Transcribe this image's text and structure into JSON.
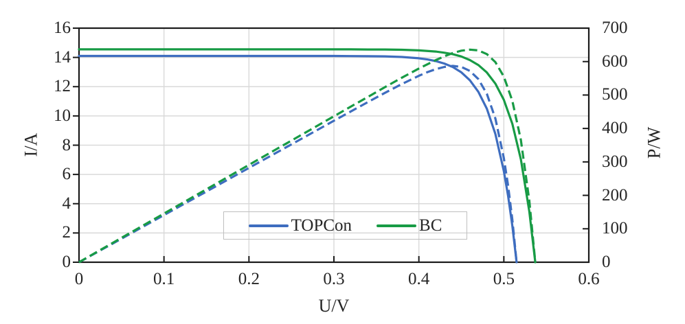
{
  "chart_data": {
    "type": "line",
    "title": "",
    "xlabel": "U/V",
    "ylabel_left": "I/A",
    "ylabel_right": "P/W",
    "x_range": [
      0,
      0.6
    ],
    "y_left_range": [
      0,
      16
    ],
    "y_right_range": [
      0,
      700
    ],
    "x_ticks": [
      "0",
      "0.1",
      "0.2",
      "0.3",
      "0.4",
      "0.5",
      "0.6"
    ],
    "y_left_ticks": [
      "0",
      "2",
      "4",
      "6",
      "8",
      "10",
      "12",
      "14",
      "16"
    ],
    "y_right_ticks": [
      "0",
      "100",
      "200",
      "300",
      "400",
      "500",
      "600",
      "700"
    ],
    "grid": true,
    "colors": {
      "topcon": "#3E6DBF",
      "bc": "#189B45",
      "gridline": "#D9D9D9",
      "axis": "#1A1A1A",
      "text": "#262626",
      "legend_border": "#BFBFBF"
    },
    "legend": {
      "position": "inside-bottom-center",
      "items": [
        {
          "label": "TOPCon",
          "color": "#3E6DBF",
          "style": "solid"
        },
        {
          "label": "BC",
          "color": "#189B45",
          "style": "solid"
        }
      ]
    },
    "series": [
      {
        "id": "topcon-iv",
        "name": "TOPCon current-voltage",
        "axis": "left",
        "style": "solid",
        "color": "#3E6DBF",
        "points": [
          [
            0,
            14.1
          ],
          [
            0.05,
            14.1
          ],
          [
            0.1,
            14.1
          ],
          [
            0.15,
            14.1
          ],
          [
            0.2,
            14.1
          ],
          [
            0.25,
            14.1
          ],
          [
            0.3,
            14.1
          ],
          [
            0.32,
            14.09
          ],
          [
            0.34,
            14.08
          ],
          [
            0.36,
            14.07
          ],
          [
            0.38,
            14.03
          ],
          [
            0.4,
            13.94
          ],
          [
            0.41,
            13.86
          ],
          [
            0.42,
            13.75
          ],
          [
            0.43,
            13.58
          ],
          [
            0.44,
            13.34
          ],
          [
            0.45,
            12.98
          ],
          [
            0.46,
            12.44
          ],
          [
            0.47,
            11.65
          ],
          [
            0.48,
            10.49
          ],
          [
            0.49,
            8.77
          ],
          [
            0.5,
            6.23
          ],
          [
            0.505,
            4.54
          ],
          [
            0.51,
            2.49
          ],
          [
            0.515,
            0
          ]
        ]
      },
      {
        "id": "bc-iv",
        "name": "BC current-voltage",
        "axis": "left",
        "style": "solid",
        "color": "#189B45",
        "points": [
          [
            0,
            14.55
          ],
          [
            0.05,
            14.55
          ],
          [
            0.1,
            14.55
          ],
          [
            0.15,
            14.55
          ],
          [
            0.2,
            14.55
          ],
          [
            0.25,
            14.55
          ],
          [
            0.3,
            14.55
          ],
          [
            0.32,
            14.55
          ],
          [
            0.34,
            14.54
          ],
          [
            0.36,
            14.54
          ],
          [
            0.38,
            14.52
          ],
          [
            0.4,
            14.48
          ],
          [
            0.42,
            14.4
          ],
          [
            0.43,
            14.32
          ],
          [
            0.44,
            14.22
          ],
          [
            0.45,
            14.06
          ],
          [
            0.46,
            13.82
          ],
          [
            0.47,
            13.48
          ],
          [
            0.48,
            12.97
          ],
          [
            0.49,
            12.21
          ],
          [
            0.5,
            11.1
          ],
          [
            0.51,
            9.46
          ],
          [
            0.52,
            7.04
          ],
          [
            0.53,
            3.47
          ],
          [
            0.537,
            0
          ]
        ]
      },
      {
        "id": "topcon-pv",
        "name": "TOPCon power-voltage",
        "axis": "right",
        "style": "dashed",
        "color": "#3E6DBF",
        "points": [
          [
            0,
            0
          ],
          [
            0.05,
            70.5
          ],
          [
            0.1,
            141
          ],
          [
            0.15,
            211.5
          ],
          [
            0.2,
            282
          ],
          [
            0.25,
            352.5
          ],
          [
            0.3,
            423
          ],
          [
            0.32,
            451
          ],
          [
            0.34,
            478.9
          ],
          [
            0.36,
            506.4
          ],
          [
            0.38,
            533
          ],
          [
            0.4,
            557.6
          ],
          [
            0.41,
            568.4
          ],
          [
            0.42,
            577.5
          ],
          [
            0.43,
            584.1
          ],
          [
            0.44,
            587
          ],
          [
            0.45,
            584
          ],
          [
            0.46,
            572.2
          ],
          [
            0.47,
            547.6
          ],
          [
            0.48,
            503.5
          ],
          [
            0.49,
            429.8
          ],
          [
            0.5,
            311.7
          ],
          [
            0.505,
            229.4
          ],
          [
            0.51,
            127.1
          ],
          [
            0.515,
            0
          ]
        ]
      },
      {
        "id": "bc-pv",
        "name": "BC power-voltage",
        "axis": "right",
        "style": "dashed",
        "color": "#189B45",
        "points": [
          [
            0,
            0
          ],
          [
            0.05,
            72.8
          ],
          [
            0.1,
            145.5
          ],
          [
            0.15,
            218.3
          ],
          [
            0.2,
            291
          ],
          [
            0.25,
            363.8
          ],
          [
            0.3,
            436.5
          ],
          [
            0.32,
            465.6
          ],
          [
            0.34,
            494.4
          ],
          [
            0.36,
            523.4
          ],
          [
            0.38,
            551.8
          ],
          [
            0.4,
            579.2
          ],
          [
            0.42,
            604.6
          ],
          [
            0.43,
            615.9
          ],
          [
            0.44,
            625.5
          ],
          [
            0.45,
            632.6
          ],
          [
            0.46,
            635.8
          ],
          [
            0.47,
            633.4
          ],
          [
            0.48,
            622.4
          ],
          [
            0.49,
            598.4
          ],
          [
            0.5,
            555.1
          ],
          [
            0.51,
            482.6
          ],
          [
            0.52,
            365.9
          ],
          [
            0.53,
            183.9
          ],
          [
            0.537,
            0
          ]
        ]
      }
    ]
  }
}
